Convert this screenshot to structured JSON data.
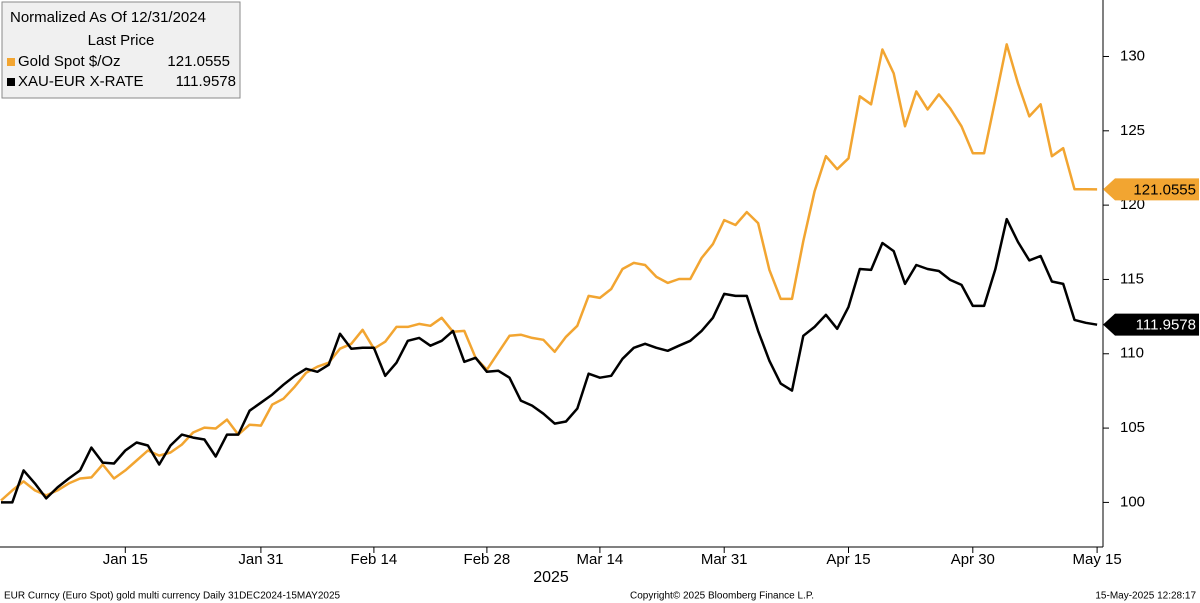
{
  "chart_data": {
    "type": "line",
    "legend_title": "Normalized As Of 12/31/2024",
    "legend_subtitle": "Last Price",
    "x_axis_label": "2025",
    "categories": [
      null,
      null,
      null,
      null,
      null,
      null,
      null,
      null,
      null,
      null,
      null,
      "Jan 15",
      null,
      null,
      null,
      null,
      null,
      null,
      null,
      null,
      null,
      null,
      null,
      "Jan 31",
      null,
      null,
      null,
      null,
      null,
      null,
      null,
      null,
      null,
      "Feb 14",
      null,
      null,
      null,
      null,
      null,
      null,
      null,
      null,
      null,
      "Feb 28",
      null,
      null,
      null,
      null,
      null,
      null,
      null,
      null,
      null,
      "Mar 14",
      null,
      null,
      null,
      null,
      null,
      null,
      null,
      null,
      null,
      null,
      "Mar 31",
      null,
      null,
      null,
      null,
      null,
      null,
      null,
      null,
      null,
      null,
      "Apr 15",
      null,
      null,
      null,
      null,
      null,
      null,
      null,
      null,
      null,
      null,
      "Apr 30",
      null,
      null,
      null,
      null,
      null,
      null,
      null,
      null,
      null,
      null,
      "May 15"
    ],
    "series": [
      {
        "name": "Gold Spot $/Oz",
        "color": "#f2a531",
        "values": [
          100.13,
          100.81,
          101.41,
          100.81,
          100.47,
          100.81,
          101.28,
          101.61,
          101.68,
          102.55,
          101.61,
          102.15,
          102.82,
          103.49,
          103.15,
          103.36,
          103.89,
          104.7,
          105.03,
          104.97,
          105.57,
          104.56,
          105.23,
          105.17,
          106.58,
          106.98,
          107.79,
          108.72,
          109.13,
          109.4,
          110.34,
          110.67,
          111.61,
          110.34,
          110.81,
          111.81,
          111.81,
          112.01,
          111.88,
          112.42,
          111.48,
          111.54,
          109.73,
          108.93,
          110.07,
          111.21,
          111.28,
          111.07,
          110.94,
          110.13,
          111.14,
          111.88,
          113.89,
          113.76,
          114.36,
          115.7,
          116.11,
          115.97,
          115.17,
          114.77,
          115.03,
          115.03,
          116.44,
          117.38,
          118.99,
          118.66,
          119.53,
          118.79,
          115.64,
          113.69,
          113.69,
          117.58,
          120.94,
          123.29,
          122.42,
          123.15,
          127.32,
          126.78,
          130.47,
          128.86,
          125.3,
          127.65,
          126.44,
          127.45,
          126.51,
          125.3,
          123.49,
          123.49,
          127.11,
          130.81,
          128.19,
          125.97,
          126.78,
          123.29,
          123.83,
          121.07,
          121.07,
          121.0555
        ]
      },
      {
        "name": "XAU-EUR X-RATE",
        "color": "#000000",
        "values": [
          100.0,
          100.0,
          102.15,
          101.28,
          100.27,
          101.01,
          101.61,
          102.15,
          103.69,
          102.68,
          102.62,
          103.49,
          104.03,
          103.83,
          102.55,
          103.83,
          104.56,
          104.36,
          104.23,
          103.09,
          104.56,
          104.56,
          106.17,
          106.71,
          107.25,
          107.92,
          108.52,
          108.99,
          108.79,
          109.26,
          111.34,
          110.34,
          110.4,
          110.4,
          108.52,
          109.4,
          110.87,
          111.07,
          110.54,
          110.87,
          111.54,
          109.46,
          109.73,
          108.79,
          108.86,
          108.39,
          106.85,
          106.51,
          105.97,
          105.3,
          105.44,
          106.31,
          108.66,
          108.39,
          108.52,
          109.66,
          110.4,
          110.67,
          110.4,
          110.2,
          110.54,
          110.87,
          111.54,
          112.42,
          114.03,
          113.89,
          113.89,
          111.54,
          109.53,
          107.99,
          107.52,
          111.21,
          111.81,
          112.62,
          111.68,
          113.15,
          115.7,
          115.64,
          117.45,
          116.91,
          114.7,
          115.97,
          115.7,
          115.57,
          114.97,
          114.63,
          113.22,
          113.22,
          115.7,
          119.06,
          117.52,
          116.28,
          116.58,
          114.86,
          114.7,
          112.28,
          112.08,
          111.9578
        ]
      }
    ],
    "ylim": [
      97,
      133.8
    ],
    "yticks": [
      100,
      105,
      110,
      115,
      120,
      125,
      130
    ],
    "grid": false,
    "footer": {
      "left": "EUR Curncy (Euro Spot) gold multi currency  Daily 31DEC2024-15MAY2025",
      "center": "Copyright© 2025 Bloomberg Finance L.P.",
      "right": "15-May-2025 12:28:17"
    }
  }
}
